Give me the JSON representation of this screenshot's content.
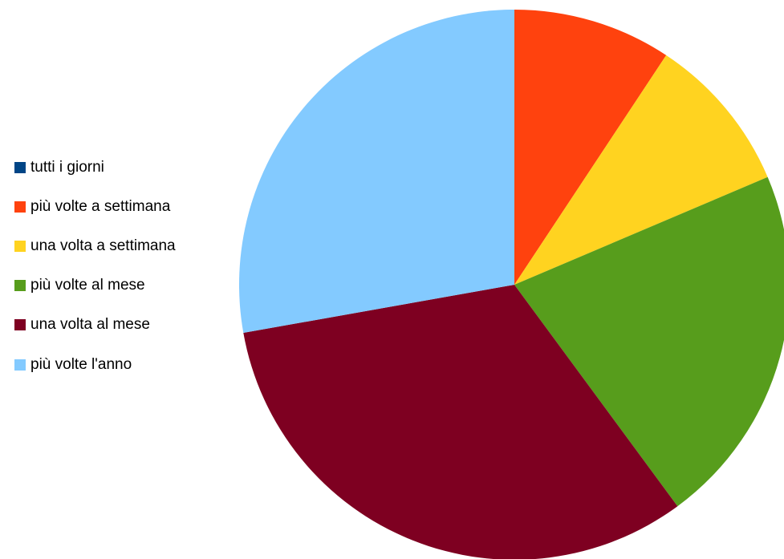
{
  "chart_data": {
    "type": "pie",
    "title": "",
    "start_angle_deg": 0,
    "direction": "clockwise",
    "legend_position": "left",
    "categories": [
      "tutti i giorni",
      "più volte a settimana",
      "una volta a settimana",
      "più volte al mese",
      "una volta al mese",
      "più volte l'anno"
    ],
    "values": [
      0,
      9.3,
      9.3,
      21.3,
      32.3,
      27.8
    ],
    "colors": [
      "#004586",
      "#ff420e",
      "#ffd320",
      "#579d1c",
      "#7e0021",
      "#83caff"
    ]
  }
}
